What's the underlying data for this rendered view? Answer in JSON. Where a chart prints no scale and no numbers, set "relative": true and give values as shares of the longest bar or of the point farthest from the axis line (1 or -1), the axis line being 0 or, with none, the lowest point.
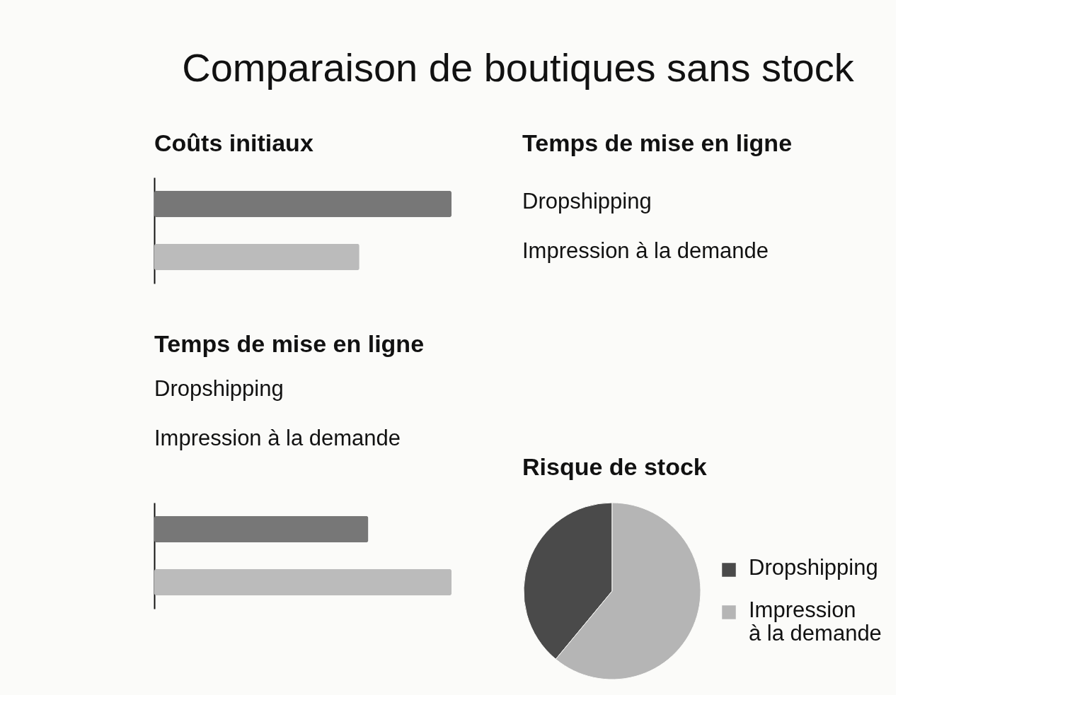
{
  "chart_data": [
    {
      "type": "bar",
      "title": "Comparaison de boutiques sans stock",
      "subtitle": "Coûts initiaux",
      "orientation": "horizontal",
      "relative": true,
      "categories": [
        null,
        null
      ],
      "values": [
        1,
        0.69
      ],
      "colors": [
        "#777777",
        "#bbbbbb"
      ]
    },
    {
      "type": "other",
      "title": "Temps de mise en ligne",
      "annotations": [
        "Dropshipping",
        "Impression à la demande"
      ]
    },
    {
      "type": "bar",
      "title": "Temps de mise en ligne",
      "orientation": "horizontal",
      "relative": true,
      "categories": [
        null,
        null
      ],
      "values": [
        0.72,
        1
      ],
      "colors": [
        "#777777",
        "#bbbbbb"
      ],
      "annotations": [
        "Dropshipping",
        "Impression à la demande"
      ]
    },
    {
      "type": "pie",
      "title": "Risque de stock",
      "categories": [
        "Dropshipping",
        "Impression\nà la demande"
      ],
      "values": [
        39,
        61
      ],
      "colors": [
        "#4a4a4a",
        "#b5b5b5"
      ],
      "legend": "right"
    }
  ]
}
